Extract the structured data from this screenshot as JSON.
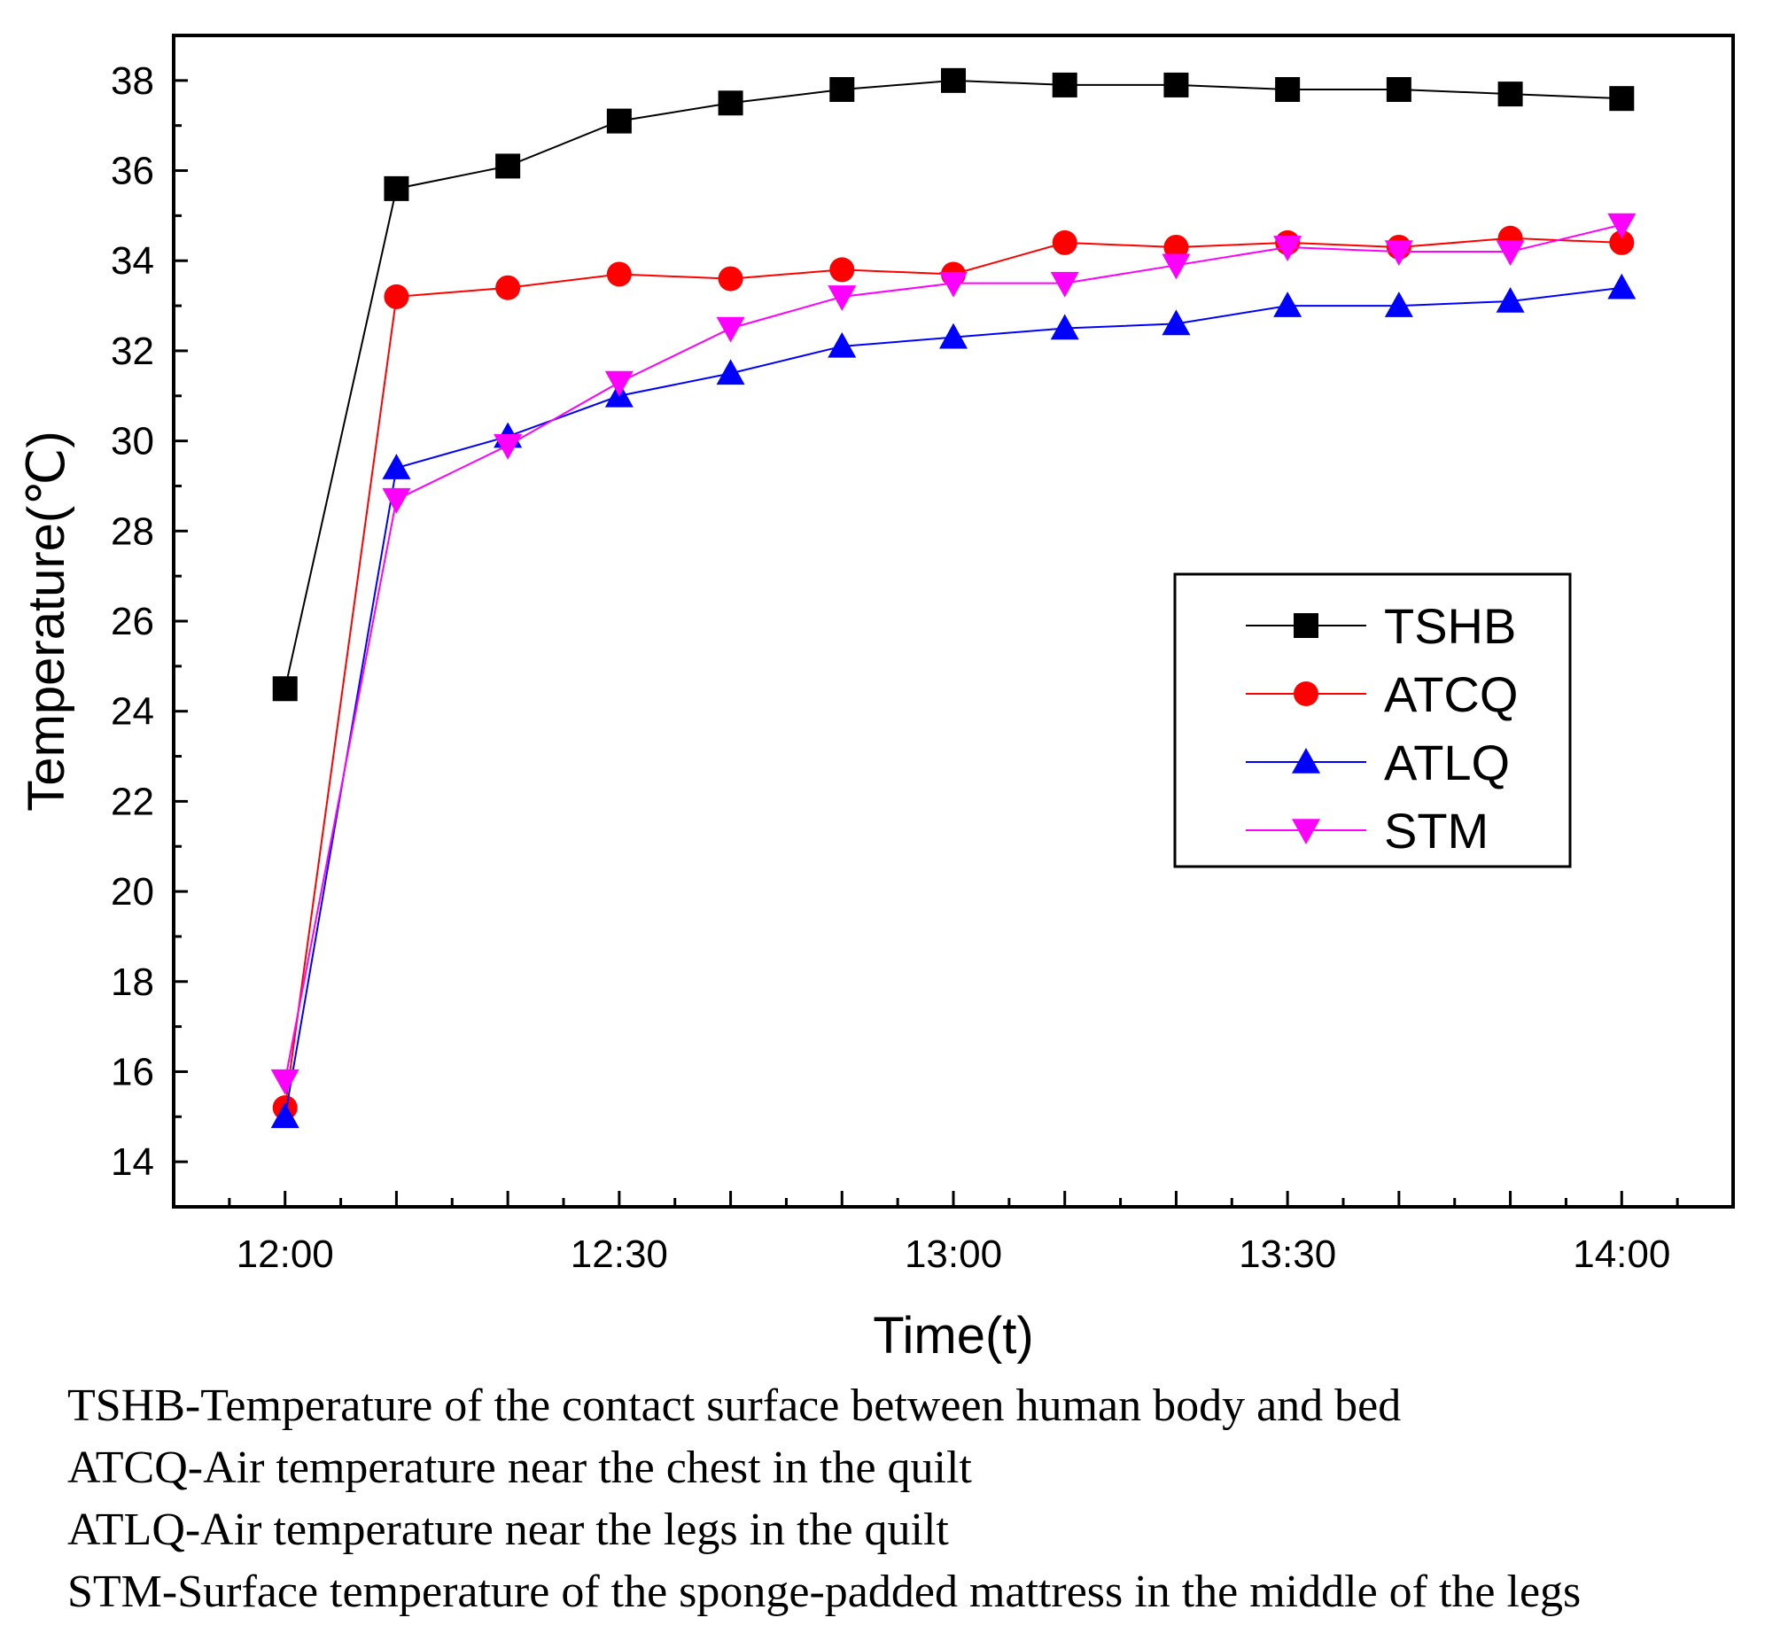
{
  "chart_data": {
    "type": "line",
    "title": "",
    "xlabel": "Time(t)",
    "ylabel": "Temperature(℃)",
    "x": [
      0,
      10,
      20,
      30,
      40,
      50,
      60,
      70,
      80,
      90,
      100,
      110,
      120
    ],
    "xlim": [
      -10,
      130
    ],
    "xticks": [
      0,
      30,
      60,
      90,
      120
    ],
    "xtick_labels": [
      "12:00",
      "12:30",
      "13:00",
      "13:30",
      "14:00"
    ],
    "ylim": [
      13,
      39
    ],
    "yticks": [
      14,
      16,
      18,
      20,
      22,
      24,
      26,
      28,
      30,
      32,
      34,
      36,
      38
    ],
    "ytick_labels": [
      "14",
      "16",
      "18",
      "20",
      "22",
      "24",
      "26",
      "28",
      "30",
      "32",
      "34",
      "36",
      "38"
    ],
    "grid": false,
    "legend_position": "right-center",
    "series": [
      {
        "name": "TSHB",
        "color": "#000000",
        "marker": "square",
        "values": [
          24.5,
          35.6,
          36.1,
          37.1,
          37.5,
          37.8,
          38.0,
          37.9,
          37.9,
          37.8,
          37.8,
          37.7,
          37.6
        ]
      },
      {
        "name": "ATCQ",
        "color": "#ff0000",
        "marker": "circle",
        "values": [
          15.2,
          33.2,
          33.4,
          33.7,
          33.6,
          33.8,
          33.7,
          34.4,
          34.3,
          34.4,
          34.3,
          34.5,
          34.4
        ]
      },
      {
        "name": "ATLQ",
        "color": "#0000ff",
        "marker": "triangle-up",
        "values": [
          15.0,
          29.4,
          30.1,
          31.0,
          31.5,
          32.1,
          32.3,
          32.5,
          32.6,
          33.0,
          33.0,
          33.1,
          33.4
        ]
      },
      {
        "name": "STM",
        "color": "#ff00ff",
        "marker": "triangle-down",
        "values": [
          15.8,
          28.7,
          29.9,
          31.3,
          32.5,
          33.2,
          33.5,
          33.5,
          33.9,
          34.3,
          34.2,
          34.2,
          34.8
        ]
      }
    ]
  },
  "notes": [
    "TSHB-Temperature of the contact surface between human body and bed",
    "ATCQ-Air temperature near the chest in the quilt",
    "ATLQ-Air temperature near the legs in the quilt",
    "STM-Surface temperature of the sponge-padded mattress in the middle of the legs"
  ]
}
